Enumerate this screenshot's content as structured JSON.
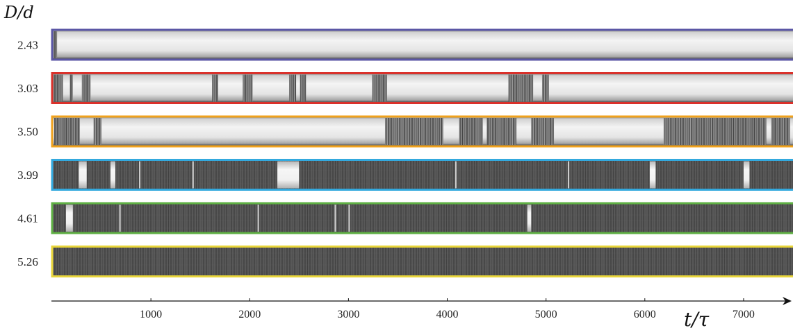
{
  "chart_data": {
    "type": "heatmap",
    "ylabel": "D/d",
    "xlabel": "t/τ",
    "x_ticks": [
      1000,
      2000,
      3000,
      4000,
      5000,
      6000,
      7000
    ],
    "xlim": [
      0,
      7500
    ],
    "rows": [
      {
        "label": "2.43",
        "color": "#5b57a6",
        "base": "laminar",
        "turbulent_intervals": [
          [
            0,
            50
          ]
        ],
        "flashes": []
      },
      {
        "label": "3.03",
        "color": "#d9312b",
        "base": "laminar",
        "turbulent_intervals": [
          [
            0,
            110
          ],
          [
            180,
            210
          ],
          [
            300,
            390
          ],
          [
            1620,
            1680
          ],
          [
            1930,
            2030
          ],
          [
            2400,
            2470
          ],
          [
            2510,
            2570
          ],
          [
            3240,
            3390
          ],
          [
            4620,
            4870
          ],
          [
            4960,
            5030
          ]
        ],
        "flashes": []
      },
      {
        "label": "3.50",
        "color": "#f0a21c",
        "base": "laminar",
        "turbulent_intervals": [
          [
            20,
            280
          ],
          [
            420,
            500
          ],
          [
            3370,
            3960
          ],
          [
            4120,
            4360
          ],
          [
            4400,
            4700
          ],
          [
            4850,
            5080
          ],
          [
            6190,
            7230
          ],
          [
            7280,
            7470
          ]
        ],
        "flashes": []
      },
      {
        "label": "3.99",
        "color": "#33a9de",
        "base": "turbulent",
        "laminar_gaps": [
          [
            270,
            350
          ],
          [
            590,
            640
          ],
          [
            2280,
            2500
          ],
          [
            6050,
            6110
          ],
          [
            7000,
            7060
          ]
        ],
        "flashes": [
          880,
          1420,
          4080,
          5220
        ]
      },
      {
        "label": "4.61",
        "color": "#5fb044",
        "base": "turbulent",
        "laminar_gaps": [
          [
            140,
            210
          ],
          [
            4810,
            4850
          ]
        ],
        "flashes": [
          680,
          2080,
          2860,
          3000
        ]
      },
      {
        "label": "5.26",
        "color": "#e8d53a",
        "base": "turbulent",
        "laminar_gaps": [],
        "flashes": []
      }
    ]
  }
}
